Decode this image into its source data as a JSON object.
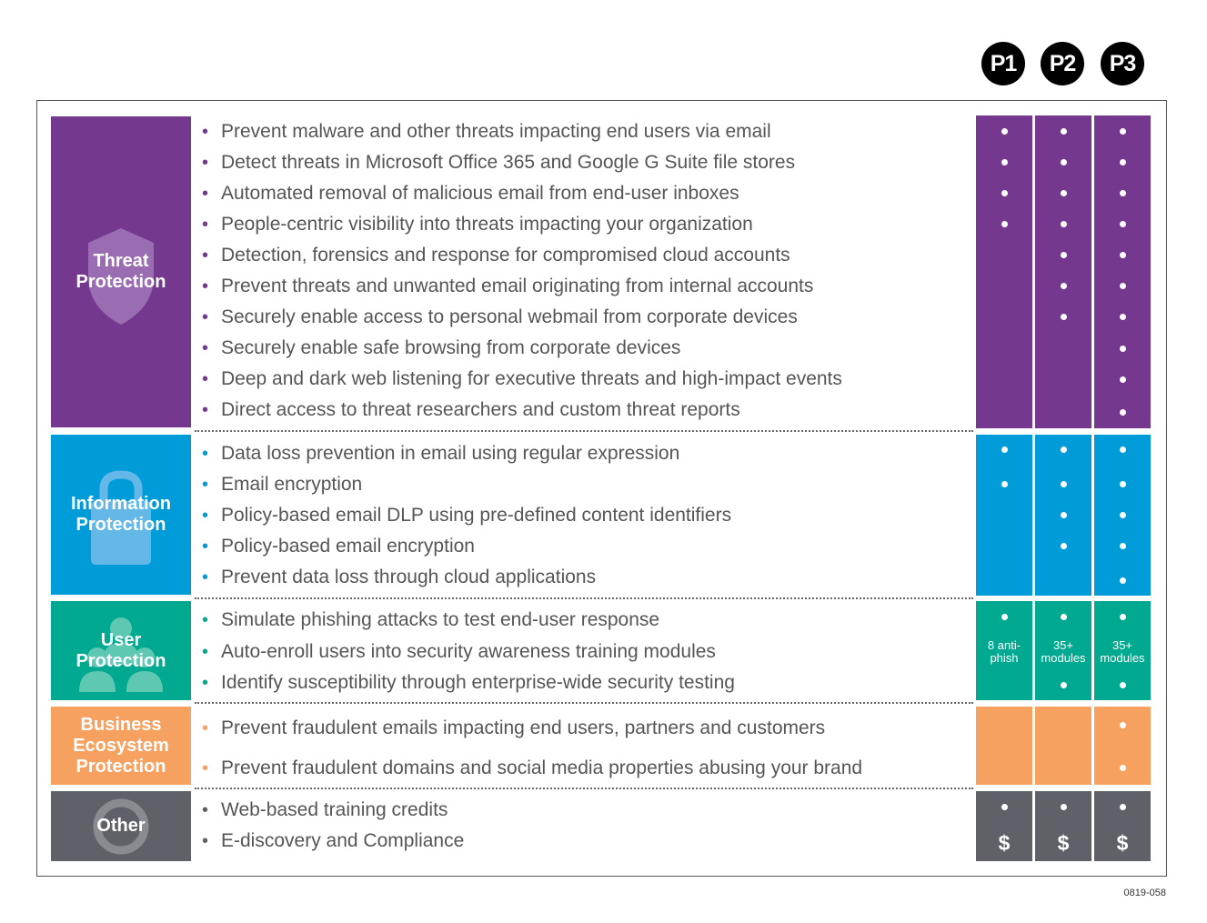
{
  "plans": [
    "P1",
    "P2",
    "P3"
  ],
  "colors": {
    "threat": "#74398f",
    "info": "#009bd9",
    "user": "#00a98f",
    "business": "#f7a160",
    "other": "#606168"
  },
  "categories": [
    {
      "label": "Threat\nProtection",
      "icon": "shield-icon"
    },
    {
      "label": "Information\nProtection",
      "icon": "lock-icon"
    },
    {
      "label": "User\nProtection",
      "icon": "users-icon"
    },
    {
      "label": "Business\nEcosystem\nProtection",
      "icon": "none"
    },
    {
      "label": "Other",
      "icon": "ring-icon"
    }
  ],
  "features": [
    "Prevent malware and other threats impacting end users via email",
    "Detect threats in Microsoft Office 365 and Google G Suite file stores",
    "Automated removal of malicious email from end-user inboxes",
    "People-centric visibility into threats impacting your organization",
    "Detection, forensics and response for compromised cloud accounts",
    "Prevent threats and unwanted email originating from internal accounts",
    "Securely enable access to personal webmail from corporate devices",
    "Securely enable safe browsing from corporate devices",
    "Deep and dark web listening for executive threats and high-impact events",
    "Direct access to threat researchers and custom threat reports",
    "Data loss prevention in email using regular expression",
    "Email encryption",
    "Policy-based email DLP using pre-defined content identifiers",
    "Policy-based email encryption",
    "Prevent data loss through cloud applications",
    "Simulate phishing attacks to test end-user response",
    "Auto-enroll users into security awareness training modules",
    "Identify susceptibility through enterprise-wide security testing",
    "Prevent fraudulent emails impacting end users, partners and customers",
    "Prevent fraudulent domains and social media properties abusing your brand",
    "Web-based training credits",
    "E-discovery and Compliance"
  ],
  "notes": [
    "8 anti-\nphish",
    "35+\nmodules",
    "35+\nmodules"
  ],
  "dollar": "$",
  "doc_id": "0819-058"
}
